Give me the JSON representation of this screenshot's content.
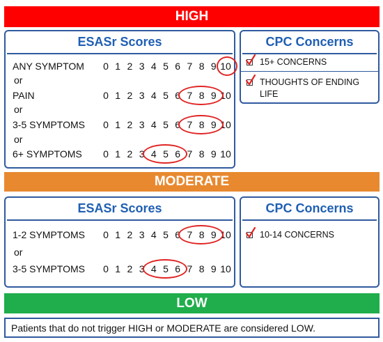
{
  "high": {
    "label": "HIGH",
    "color": "#ff0000",
    "esas": {
      "title": "ESASr Scores",
      "rows": [
        {
          "label": "ANY SYMPTOM",
          "circled": [
            10
          ]
        },
        {
          "label": "PAIN",
          "circled": [
            7,
            8,
            9
          ]
        },
        {
          "label": "3-5 SYMPTOMS",
          "circled": [
            7,
            8,
            9
          ]
        },
        {
          "label": "6+ SYMPTOMS",
          "circled": [
            4,
            5,
            6
          ]
        }
      ],
      "separator": "or"
    },
    "cpc": {
      "title": "CPC Concerns",
      "items": [
        "15+ CONCERNS",
        "THOUGHTS OF ENDING LIFE"
      ]
    }
  },
  "moderate": {
    "label": "MODERATE",
    "color": "#e8892f",
    "esas": {
      "title": "ESASr Scores",
      "rows": [
        {
          "label": "1-2 SYMPTOMS",
          "circled": [
            7,
            8,
            9
          ]
        },
        {
          "label": "3-5 SYMPTOMS",
          "circled": [
            4,
            5,
            6
          ]
        }
      ],
      "separator": "or"
    },
    "cpc": {
      "title": "CPC Concerns",
      "items": [
        "10-14 CONCERNS"
      ]
    }
  },
  "low": {
    "label": "LOW",
    "color": "#1fae4b",
    "note": "Patients that do not trigger HIGH or MODERATE are considered LOW."
  },
  "scale": [
    0,
    1,
    2,
    3,
    4,
    5,
    6,
    7,
    8,
    9,
    10
  ],
  "icons": {
    "check": "checkbox-checked-icon"
  },
  "colors": {
    "border": "#2f5a9e",
    "title": "#1f5fb3",
    "circle": "#e02424"
  }
}
